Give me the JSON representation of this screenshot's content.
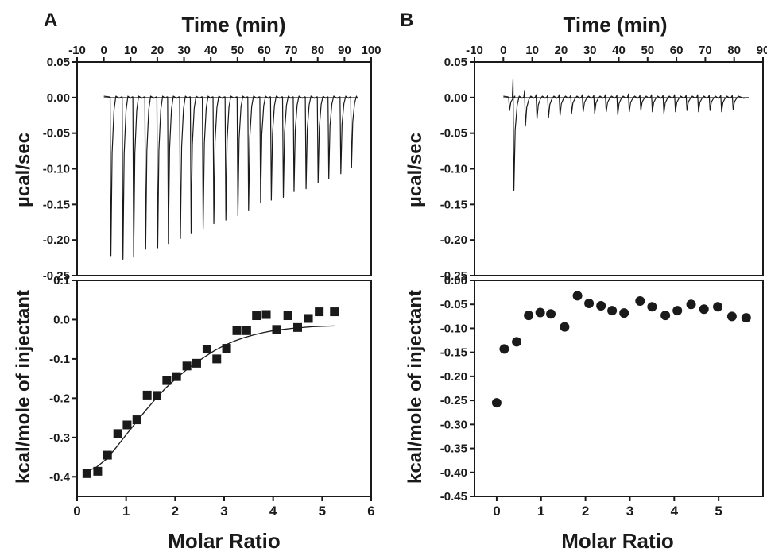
{
  "panels": {
    "A": {
      "letter": "A",
      "top_xlabel": "Time (min)",
      "top_ylabel": "µcal/sec",
      "bottom_xlabel": "Molar Ratio",
      "bottom_ylabel": "kcal/mole of injectant"
    },
    "B": {
      "letter": "B",
      "top_xlabel": "Time (min)",
      "top_ylabel": "µcal/sec",
      "bottom_xlabel": "Molar Ratio",
      "bottom_ylabel": "kcal/mole of injectant"
    }
  },
  "chart_data": [
    {
      "panel": "A",
      "position": "top",
      "type": "line",
      "xlabel": "Time (min)",
      "ylabel": "µcal/sec",
      "xlim": [
        -10,
        100
      ],
      "ylim": [
        -0.25,
        0.05
      ],
      "xticks": [
        -10,
        0,
        10,
        20,
        30,
        40,
        50,
        60,
        70,
        80,
        90,
        100
      ],
      "yticks": [
        "0.05",
        "0.00",
        "-0.05",
        "-0.10",
        "-0.15",
        "-0.20",
        "-0.25"
      ],
      "baseline": 0.0,
      "trace_x_range": [
        0,
        95
      ],
      "injection_times": [
        2.5,
        7,
        11,
        15.5,
        20,
        24,
        28.5,
        32.5,
        37,
        41,
        45.5,
        50,
        54,
        58.5,
        62.5,
        67,
        71,
        75.5,
        80,
        84,
        88.5,
        92.5
      ],
      "peak_minima": [
        -0.222,
        -0.227,
        -0.224,
        -0.213,
        -0.211,
        -0.205,
        -0.198,
        -0.19,
        -0.184,
        -0.177,
        -0.172,
        -0.166,
        -0.159,
        -0.148,
        -0.144,
        -0.14,
        -0.132,
        -0.128,
        -0.12,
        -0.114,
        -0.107,
        -0.098
      ]
    },
    {
      "panel": "A",
      "position": "bottom",
      "type": "scatter",
      "xlabel": "Molar Ratio",
      "ylabel": "kcal/mole of injectant",
      "xlim": [
        0,
        6
      ],
      "ylim": [
        -0.45,
        0.1
      ],
      "xticks": [
        "0",
        "1",
        "2",
        "3",
        "4",
        "5",
        "6"
      ],
      "yticks": [
        "0.1",
        "0.0",
        "-0.1",
        "-0.2",
        "-0.3",
        "-0.4"
      ],
      "marker": "square",
      "x": [
        0.2,
        0.42,
        0.62,
        0.83,
        1.02,
        1.22,
        1.43,
        1.63,
        1.83,
        2.03,
        2.24,
        2.44,
        2.65,
        2.85,
        3.05,
        3.26,
        3.46,
        3.66,
        3.86,
        4.07,
        4.3,
        4.5,
        4.72,
        4.94,
        5.25
      ],
      "y": [
        -0.392,
        -0.386,
        -0.345,
        -0.29,
        -0.268,
        -0.255,
        -0.192,
        -0.193,
        -0.155,
        -0.145,
        -0.118,
        -0.111,
        -0.075,
        -0.1,
        -0.073,
        -0.028,
        -0.028,
        0.01,
        0.013,
        -0.025,
        0.01,
        -0.02,
        0.003,
        0.02,
        0.02
      ],
      "fit_curve": {
        "x": [
          0.2,
          0.4,
          0.6,
          0.8,
          1.0,
          1.2,
          1.4,
          1.6,
          1.8,
          2.0,
          2.2,
          2.4,
          2.6,
          2.8,
          3.0,
          3.2,
          3.4,
          3.6,
          3.8,
          4.0,
          4.2,
          4.4,
          4.6,
          4.8,
          5.0,
          5.25
        ],
        "y": [
          -0.387,
          -0.375,
          -0.355,
          -0.325,
          -0.293,
          -0.262,
          -0.231,
          -0.202,
          -0.175,
          -0.152,
          -0.131,
          -0.112,
          -0.095,
          -0.079,
          -0.066,
          -0.055,
          -0.046,
          -0.039,
          -0.033,
          -0.028,
          -0.025,
          -0.022,
          -0.02,
          -0.018,
          -0.017,
          -0.016
        ]
      }
    },
    {
      "panel": "B",
      "position": "top",
      "type": "line",
      "xlabel": "Time (min)",
      "ylabel": "µcal/sec",
      "xlim": [
        -10,
        90
      ],
      "ylim": [
        -0.25,
        0.05
      ],
      "xticks": [
        -10,
        0,
        10,
        20,
        30,
        40,
        50,
        60,
        70,
        80,
        90
      ],
      "yticks": [
        "0.05",
        "0.00",
        "-0.05",
        "-0.10",
        "-0.15",
        "-0.20",
        "-0.25"
      ],
      "baseline": 0.0,
      "trace_x_range": [
        0,
        85
      ],
      "injection_times": [
        2,
        3.5,
        7.5,
        11.5,
        15.5,
        19.5,
        23.5,
        27.5,
        31.5,
        35.5,
        39.5,
        43.5,
        47.5,
        51.5,
        55.5,
        59.5,
        63.5,
        67.5,
        71.5,
        75.5,
        79.5
      ],
      "peak_minima": [
        -0.018,
        -0.13,
        -0.04,
        -0.03,
        -0.028,
        -0.025,
        -0.022,
        -0.02,
        -0.022,
        -0.02,
        -0.024,
        -0.02,
        -0.018,
        -0.02,
        -0.022,
        -0.02,
        -0.018,
        -0.02,
        -0.018,
        -0.02,
        -0.017
      ],
      "peak_maxima": [
        0.0,
        0.025,
        0.01,
        0.004,
        0.003,
        0.004,
        0.003,
        0.004,
        0.003,
        0.004,
        0.003,
        0.005,
        0.003,
        0.004,
        0.003,
        0.004,
        0.003,
        0.004,
        0.003,
        0.003,
        0.003
      ]
    },
    {
      "panel": "B",
      "position": "bottom",
      "type": "scatter",
      "xlabel": "Molar Ratio",
      "ylabel": "kcal/mole of injectant",
      "xlim": [
        -0.5,
        6
      ],
      "ylim": [
        -0.45,
        0.0
      ],
      "xticks": [
        "0",
        "1",
        "2",
        "3",
        "4",
        "5"
      ],
      "yticks": [
        "0.00",
        "-0.05",
        "-0.10",
        "-0.15",
        "-0.20",
        "-0.25",
        "-0.30",
        "-0.35",
        "-0.40",
        "-0.45"
      ],
      "marker": "circle",
      "x": [
        0.0,
        0.17,
        0.45,
        0.72,
        0.98,
        1.22,
        1.53,
        1.82,
        2.08,
        2.35,
        2.6,
        2.87,
        3.23,
        3.5,
        3.8,
        4.07,
        4.38,
        4.67,
        4.98,
        5.3,
        5.62
      ],
      "y": [
        -0.255,
        -0.143,
        -0.128,
        -0.073,
        -0.067,
        -0.07,
        -0.097,
        -0.032,
        -0.048,
        -0.053,
        -0.063,
        -0.068,
        -0.043,
        -0.055,
        -0.073,
        -0.063,
        -0.05,
        -0.06,
        -0.055,
        -0.075,
        -0.078
      ]
    }
  ]
}
